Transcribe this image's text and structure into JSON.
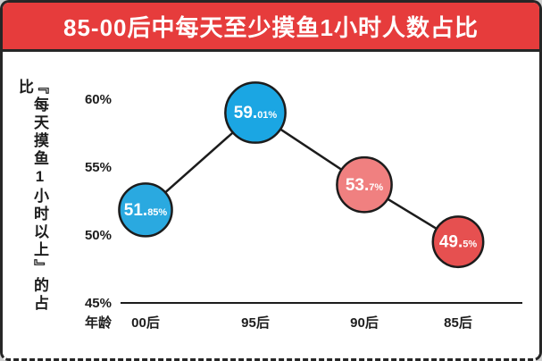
{
  "chart_data": {
    "type": "line",
    "title": "85-00后中每天至少摸鱼1小时人数占比",
    "xlabel": "年龄",
    "ylabel": "『每天摸鱼1小时以上』的占比",
    "categories": [
      "00后",
      "95后",
      "90后",
      "85后"
    ],
    "values": [
      51.85,
      59.01,
      53.7,
      49.5
    ],
    "value_labels": [
      "51.85%",
      "59.01%",
      "53.7%",
      "49.5%"
    ],
    "point_colors": [
      "#2aa9e0",
      "#1ba6e3",
      "#f08080",
      "#e65050"
    ],
    "ylim": [
      45,
      60
    ],
    "yticks": [
      "60%",
      "55%",
      "50%",
      "45%"
    ],
    "grid": false,
    "legend": "none",
    "accent_color": "#e63c3c",
    "line_color": "#1c1c1c"
  }
}
